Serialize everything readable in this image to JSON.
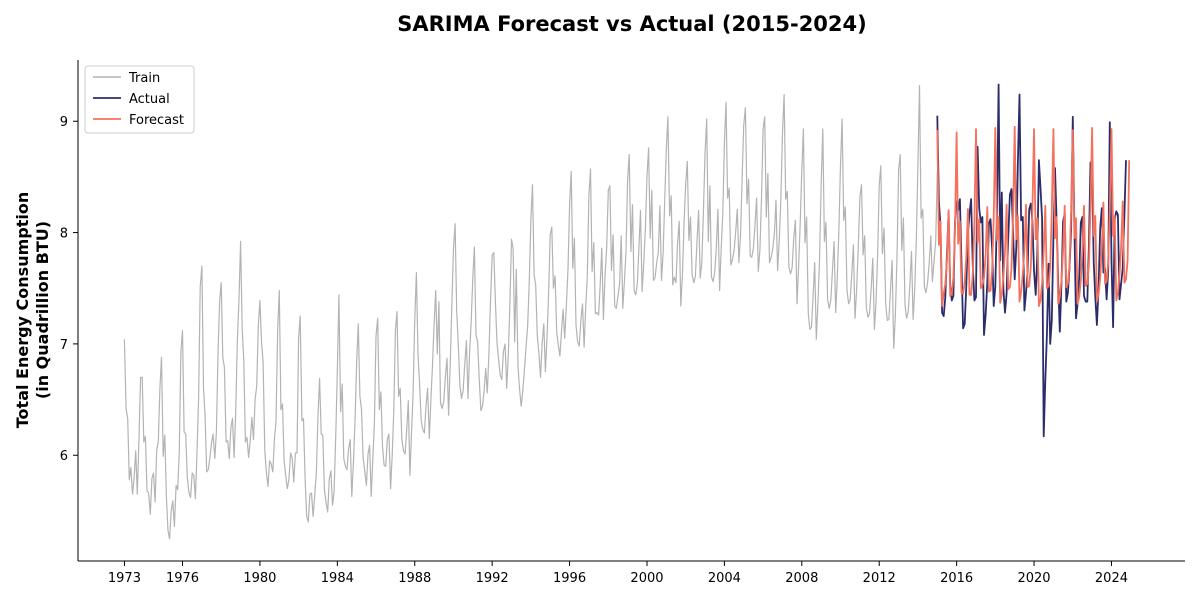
{
  "chart_data": {
    "type": "line",
    "title": "SARIMA Forecast vs Actual (2015-2024)",
    "xlabel": "",
    "ylabel_lines": [
      "Total Energy Consumption",
      "(in Quadrillion BTU)"
    ],
    "xlim": [
      1970.6,
      2027.8
    ],
    "ylim": [
      5.05,
      9.55
    ],
    "xticks": [
      1973,
      1976,
      1980,
      1984,
      1988,
      1992,
      1996,
      2000,
      2004,
      2008,
      2012,
      2016,
      2020,
      2024
    ],
    "yticks": [
      6,
      7,
      8,
      9
    ],
    "grid": false,
    "legend_position": "top-left",
    "colors": {
      "train": "#b3b3b3",
      "actual": "#2b2d6b",
      "forecast": "#f4715d"
    },
    "series": [
      {
        "name": "Train",
        "key": "train",
        "x_start": 1973.0,
        "x_step": 0.083333,
        "values": [
          7.04,
          6.42,
          6.33,
          5.78,
          5.89,
          5.65,
          5.79,
          6.04,
          5.65,
          6.15,
          6.7,
          6.7,
          6.12,
          6.17,
          5.68,
          5.66,
          5.47,
          5.79,
          5.84,
          5.58,
          6.05,
          6.12,
          6.6,
          6.88,
          5.99,
          6.18,
          5.62,
          5.32,
          5.25,
          5.5,
          5.59,
          5.36,
          5.73,
          5.69,
          6.05,
          6.93,
          7.12,
          6.21,
          6.19,
          5.8,
          5.66,
          5.62,
          5.84,
          5.82,
          5.61,
          6.03,
          6.51,
          7.51,
          7.7,
          6.61,
          6.35,
          5.85,
          5.87,
          5.98,
          6.11,
          6.19,
          5.97,
          6.21,
          6.9,
          7.38,
          7.55,
          6.88,
          6.79,
          6.12,
          6.13,
          5.97,
          6.25,
          6.33,
          5.98,
          6.38,
          7.02,
          7.4,
          7.92,
          7.13,
          6.85,
          6.12,
          6.16,
          5.98,
          6.13,
          6.34,
          6.14,
          6.5,
          6.62,
          7.16,
          7.39,
          7.02,
          6.84,
          6.04,
          5.84,
          5.72,
          5.95,
          5.92,
          5.85,
          6.14,
          6.3,
          7.14,
          7.48,
          6.41,
          6.46,
          5.95,
          5.82,
          5.7,
          5.78,
          6.02,
          5.97,
          5.76,
          6.02,
          6.02,
          7.05,
          7.25,
          6.31,
          6.33,
          5.79,
          5.45,
          5.4,
          5.65,
          5.66,
          5.45,
          5.65,
          5.85,
          6.36,
          6.69,
          6.19,
          6.18,
          5.69,
          5.58,
          5.49,
          5.79,
          5.86,
          5.55,
          5.67,
          6.16,
          6.74,
          7.44,
          6.39,
          6.64,
          5.97,
          5.9,
          5.87,
          6.06,
          6.14,
          5.63,
          5.95,
          6.33,
          6.85,
          7.18,
          6.53,
          6.41,
          5.98,
          5.86,
          5.73,
          6.01,
          6.09,
          5.63,
          5.96,
          6.29,
          7.07,
          7.23,
          6.41,
          6.57,
          6.08,
          5.91,
          5.9,
          6.14,
          6.19,
          5.7,
          6.0,
          6.4,
          7.12,
          7.29,
          6.53,
          6.6,
          6.15,
          6.04,
          6.01,
          6.22,
          6.49,
          5.82,
          6.2,
          6.56,
          7.2,
          7.64,
          6.9,
          6.64,
          6.31,
          6.23,
          6.2,
          6.44,
          6.6,
          6.15,
          6.5,
          6.81,
          7.18,
          7.48,
          6.91,
          7.38,
          6.47,
          6.42,
          6.49,
          6.71,
          6.87,
          6.36,
          6.81,
          7.33,
          7.84,
          8.08,
          7.29,
          6.99,
          6.63,
          6.51,
          6.58,
          6.81,
          7.03,
          6.51,
          6.92,
          7.2,
          7.59,
          7.87,
          7.08,
          7.02,
          6.67,
          6.4,
          6.44,
          6.58,
          6.78,
          6.56,
          6.91,
          7.38,
          7.8,
          7.82,
          7.38,
          7.01,
          6.86,
          6.72,
          6.68,
          6.93,
          7.0,
          6.6,
          6.9,
          7.36,
          7.94,
          7.86,
          7.02,
          7.67,
          6.8,
          6.59,
          6.44,
          6.58,
          6.76,
          6.97,
          7.15,
          7.54,
          8.12,
          8.43,
          7.62,
          7.53,
          7.07,
          6.92,
          6.7,
          7.01,
          7.18,
          6.75,
          7.06,
          7.45,
          7.98,
          8.05,
          7.5,
          7.61,
          7.11,
          6.99,
          6.89,
          7.11,
          7.31,
          7.05,
          7.33,
          7.67,
          8.25,
          8.55,
          7.68,
          7.95,
          7.17,
          7.02,
          6.98,
          7.21,
          7.36,
          6.97,
          7.33,
          7.61,
          8.33,
          8.57,
          7.65,
          7.91,
          7.27,
          7.28,
          7.26,
          7.53,
          7.86,
          7.22,
          7.6,
          7.87,
          8.38,
          8.42,
          7.66,
          7.98,
          7.34,
          7.32,
          7.43,
          7.54,
          7.97,
          7.32,
          7.56,
          7.83,
          8.47,
          8.7,
          7.83,
          8.25,
          7.48,
          7.44,
          7.54,
          7.86,
          8.2,
          7.47,
          7.73,
          8.04,
          8.51,
          8.76,
          7.95,
          8.38,
          7.57,
          7.59,
          7.73,
          7.82,
          8.24,
          7.57,
          7.81,
          8.28,
          8.75,
          9.04,
          8.15,
          8.33,
          7.53,
          7.6,
          7.55,
          7.91,
          8.1,
          7.34,
          7.63,
          8.1,
          8.44,
          8.64,
          7.93,
          8.14,
          7.62,
          7.55,
          7.61,
          7.92,
          8.2,
          7.59,
          7.73,
          8.18,
          8.7,
          9.02,
          7.92,
          8.42,
          7.6,
          7.56,
          7.64,
          7.86,
          8.21,
          7.48,
          7.86,
          8.17,
          8.8,
          9.17,
          8.31,
          8.4,
          7.71,
          7.76,
          7.84,
          8.01,
          8.21,
          7.73,
          7.97,
          8.48,
          8.96,
          9.12,
          8.26,
          8.48,
          7.79,
          7.78,
          7.86,
          8.07,
          8.31,
          7.65,
          7.84,
          8.31,
          8.93,
          9.04,
          8.14,
          8.53,
          7.73,
          7.78,
          7.86,
          7.99,
          8.29,
          7.66,
          7.92,
          8.28,
          8.9,
          9.24,
          8.3,
          8.37,
          7.69,
          7.63,
          7.68,
          7.94,
          8.11,
          7.36,
          7.69,
          8.08,
          8.56,
          8.93,
          7.91,
          8.14,
          7.27,
          7.13,
          7.15,
          7.43,
          7.73,
          7.04,
          7.36,
          7.75,
          8.44,
          8.93,
          7.92,
          8.09,
          7.4,
          7.32,
          7.39,
          7.65,
          7.92,
          7.28,
          7.59,
          8.03,
          8.61,
          9.02,
          8.11,
          8.23,
          7.48,
          7.36,
          7.4,
          7.63,
          7.89,
          7.23,
          7.48,
          7.87,
          8.32,
          8.43,
          7.8,
          7.97,
          7.33,
          7.24,
          7.27,
          7.5,
          7.77,
          7.13,
          7.37,
          7.79,
          8.42,
          8.6,
          7.81,
          8.04,
          7.36,
          7.21,
          7.22,
          7.49,
          7.75,
          6.96,
          7.24,
          7.78,
          8.56,
          8.7,
          7.84,
          8.13,
          7.35,
          7.23,
          7.29,
          7.54,
          7.83,
          7.22,
          7.48,
          7.93,
          8.59,
          9.32,
          8.13,
          8.21,
          7.51,
          7.46,
          7.55,
          7.73,
          7.97,
          7.56,
          7.75,
          7.92,
          8.55
        ]
      },
      {
        "name": "Actual",
        "key": "actual",
        "x_start": 2015.0,
        "x_step": 0.083333,
        "values": [
          9.05,
          8.28,
          8.06,
          7.28,
          7.25,
          7.42,
          7.82,
          8.18,
          7.52,
          7.39,
          7.43,
          8.1,
          8.28,
          8.2,
          8.3,
          7.72,
          7.14,
          7.18,
          7.52,
          7.99,
          8.17,
          8.3,
          7.7,
          7.39,
          7.42,
          8.77,
          8.22,
          8.09,
          8.14,
          7.08,
          7.27,
          7.55,
          8.08,
          8.12,
          7.86,
          7.34,
          7.51,
          8.19,
          9.33,
          7.75,
          8.36,
          7.49,
          7.28,
          7.45,
          7.94,
          8.34,
          8.39,
          8.0,
          7.58,
          7.87,
          8.64,
          9.24,
          8.11,
          8.14,
          7.3,
          7.46,
          7.66,
          8.21,
          8.26,
          8.1,
          7.66,
          7.44,
          7.79,
          8.65,
          8.4,
          8.12,
          6.17,
          6.67,
          7.08,
          7.72,
          7.0,
          7.21,
          7.95,
          8.58,
          8.11,
          7.55,
          7.11,
          7.55,
          8.1,
          8.17,
          7.38,
          7.46,
          7.68,
          8.02,
          9.04,
          8.05,
          7.23,
          7.36,
          7.59,
          8.09,
          8.14,
          7.43,
          7.38,
          7.38,
          7.89,
          8.63,
          8.59,
          7.74,
          7.42,
          7.17,
          7.51,
          8.04,
          8.22,
          7.64,
          7.68,
          7.4,
          7.66,
          8.99,
          7.74,
          7.15,
          8.12,
          8.19,
          8.16,
          7.4,
          7.54,
          7.68,
          8.16,
          8.65
        ]
      },
      {
        "name": "Forecast",
        "key": "forecast",
        "x_start": 2015.0,
        "x_step": 0.083333,
        "values": [
          8.92,
          7.89,
          8.1,
          7.34,
          7.45,
          7.54,
          7.76,
          8.2,
          7.43,
          7.45,
          7.6,
          8.03,
          8.9,
          7.9,
          8.1,
          7.46,
          7.45,
          7.56,
          7.78,
          8.21,
          7.44,
          7.44,
          7.63,
          8.08,
          8.93,
          7.91,
          8.12,
          7.5,
          7.53,
          7.59,
          7.81,
          8.23,
          7.47,
          7.48,
          7.66,
          8.13,
          8.94,
          7.93,
          8.14,
          7.37,
          7.45,
          7.6,
          7.83,
          8.25,
          7.49,
          7.51,
          7.68,
          8.16,
          8.95,
          7.94,
          8.15,
          7.38,
          7.47,
          7.63,
          7.84,
          8.25,
          7.51,
          7.52,
          7.69,
          8.2,
          8.93,
          7.94,
          8.13,
          7.34,
          7.39,
          7.55,
          7.83,
          8.24,
          7.5,
          7.52,
          7.69,
          8.19,
          8.93,
          7.95,
          8.14,
          7.36,
          7.42,
          7.57,
          7.84,
          8.24,
          7.51,
          7.54,
          7.7,
          8.2,
          8.92,
          7.95,
          8.13,
          7.36,
          7.42,
          7.57,
          7.84,
          8.24,
          7.52,
          7.54,
          7.71,
          8.21,
          8.94,
          7.97,
          8.15,
          7.38,
          7.45,
          7.59,
          7.86,
          8.27,
          7.54,
          7.56,
          7.73,
          8.22,
          8.93,
          7.97,
          8.15,
          7.39,
          7.46,
          7.62,
          7.87,
          8.28,
          7.55,
          7.58,
          7.75,
          8.65
        ]
      }
    ]
  }
}
